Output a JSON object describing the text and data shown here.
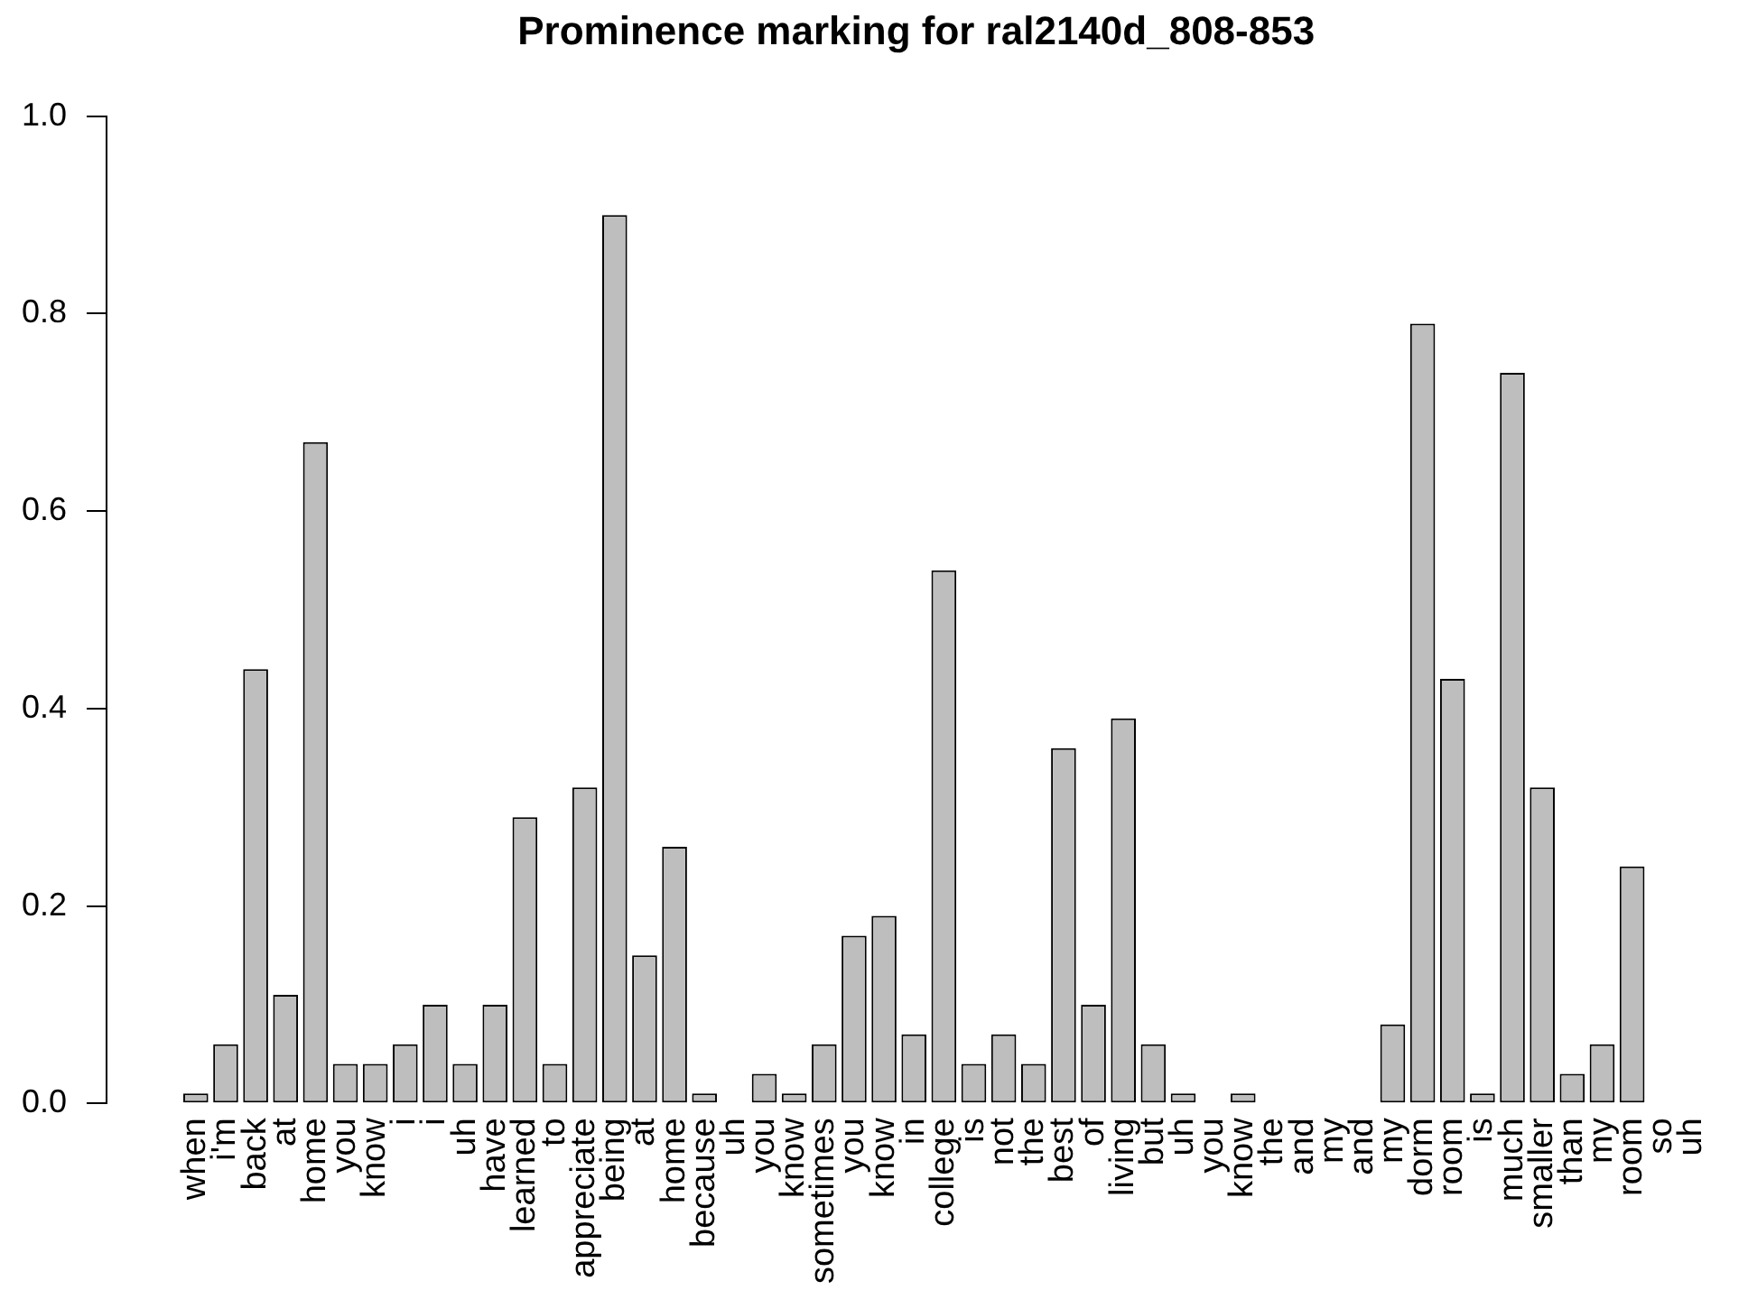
{
  "chart_data": {
    "type": "bar",
    "title": "Prominence marking for ral2140d_808-853",
    "categories": [
      "when",
      "i'm",
      "back",
      "at",
      "home",
      "you",
      "know",
      "i",
      "i",
      "uh",
      "have",
      "learned",
      "to",
      "appreciate",
      "being",
      "at",
      "home",
      "because",
      "uh",
      "you",
      "know",
      "sometimes",
      "you",
      "know",
      "in",
      "college",
      "is",
      "not",
      "the",
      "best",
      "of",
      "living",
      "but",
      "uh",
      "you",
      "know",
      "the",
      "and",
      "my",
      "and",
      "my",
      "dorm",
      "room",
      "is",
      "much",
      "smaller",
      "than",
      "my",
      "room",
      "so",
      "uh"
    ],
    "values": [
      0.01,
      0.06,
      0.44,
      0.11,
      0.67,
      0.04,
      0.04,
      0.06,
      0.1,
      0.04,
      0.1,
      0.29,
      0.04,
      0.32,
      0.9,
      0.15,
      0.26,
      0.01,
      0,
      0.03,
      0.01,
      0.06,
      0.17,
      0.19,
      0.07,
      0.54,
      0.04,
      0.07,
      0.04,
      0.36,
      0.1,
      0.39,
      0.06,
      0.01,
      0,
      0.01,
      0,
      0,
      0,
      0,
      0.08,
      0.79,
      0.43,
      0.01,
      0.74,
      0.32,
      0.03,
      0.06,
      0.24,
      0,
      0
    ],
    "color": "#bebebe",
    "ylim": [
      0,
      1
    ],
    "yticks": [
      {
        "value": 0,
        "label": "0.0"
      },
      {
        "value": 0.2,
        "label": "0.2"
      },
      {
        "value": 0.4,
        "label": "0.4"
      },
      {
        "value": 0.6,
        "label": "0.6"
      },
      {
        "value": 0.8,
        "label": "0.8"
      },
      {
        "value": 1,
        "label": "1.0"
      }
    ]
  }
}
